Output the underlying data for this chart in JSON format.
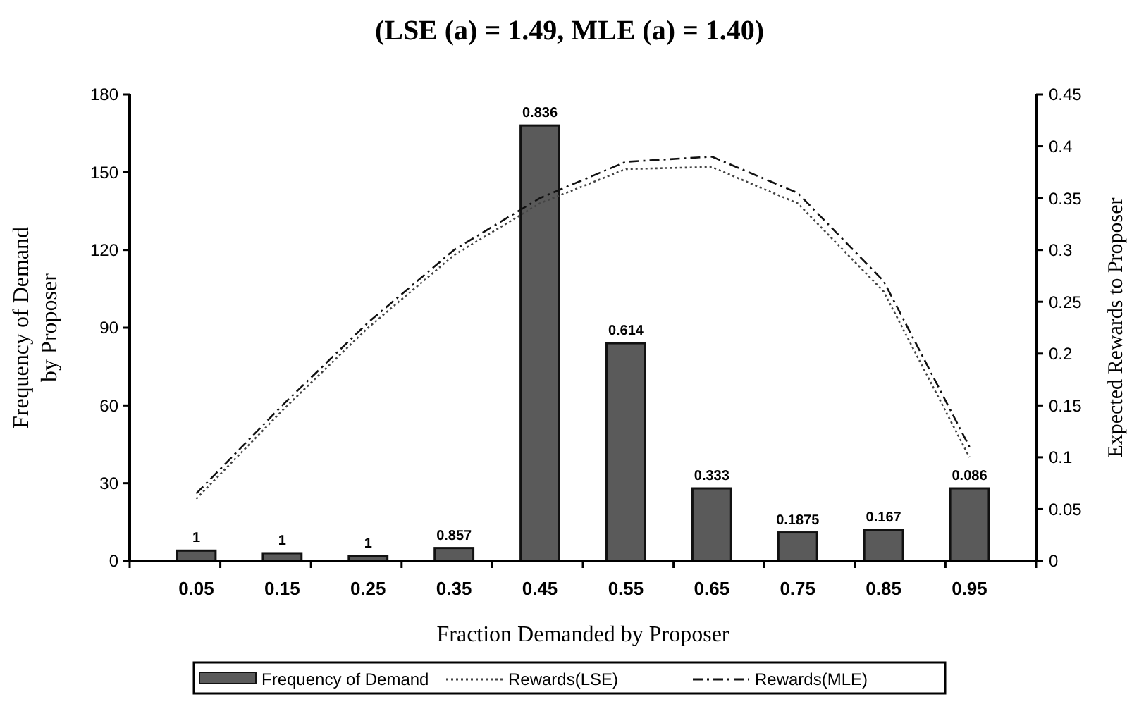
{
  "chart_data": {
    "type": "bar",
    "title": "(LSE (a) = 1.49, MLE (a) = 1.40)",
    "xlabel": "Fraction Demanded by Proposer",
    "ylabel": "Frequency of Demand by Proposer",
    "y2label": "Expected Rewards to Proposer",
    "categories": [
      "0.05",
      "0.15",
      "0.25",
      "0.35",
      "0.45",
      "0.55",
      "0.65",
      "0.75",
      "0.85",
      "0.95"
    ],
    "series": [
      {
        "name": "Frequency of Demand",
        "color": "#5a5a5a",
        "values": [
          4,
          3,
          2,
          5,
          168,
          84,
          28,
          11,
          12,
          28
        ]
      },
      {
        "name": "Rewards(LSE)",
        "type": "line",
        "axis": "y2",
        "color": "#444444",
        "line_style": "dotted",
        "values": [
          0.06,
          0.145,
          0.225,
          0.295,
          0.345,
          0.378,
          0.38,
          0.345,
          0.26,
          0.1
        ]
      },
      {
        "name": "Rewards(MLE)",
        "type": "line",
        "axis": "y2",
        "color": "#111111",
        "line_style": "dashed",
        "values": [
          0.065,
          0.15,
          0.23,
          0.3,
          0.35,
          0.385,
          0.39,
          0.355,
          0.27,
          0.11
        ]
      }
    ],
    "ylim": [
      0,
      180
    ],
    "yticks": [
      0,
      30,
      60,
      90,
      120,
      150,
      180
    ],
    "y2lim": [
      0,
      0.45
    ],
    "y2ticks": [
      0,
      0.05,
      0.1,
      0.15,
      0.2,
      0.25,
      0.3,
      0.35,
      0.4,
      0.45
    ],
    "annotations": [
      {
        "text": "1",
        "x": "0.05",
        "y": 4
      },
      {
        "text": "1",
        "x": "0.15",
        "y": 3
      },
      {
        "text": "1",
        "x": "0.25",
        "y": 2
      },
      {
        "text": "0.857",
        "x": "0.35",
        "y": 5
      },
      {
        "text": "0.836",
        "x": "0.45",
        "y": 168
      },
      {
        "text": "0.614",
        "x": "0.55",
        "y": 84
      },
      {
        "text": "0.333",
        "x": "0.65",
        "y": 28
      },
      {
        "text": "0.1875",
        "x": "0.75",
        "y": 11
      },
      {
        "text": "0.167",
        "x": "0.85",
        "y": 12
      },
      {
        "text": "0.086",
        "x": "0.95",
        "y": 28
      }
    ],
    "legend": "bottom",
    "grid": false
  }
}
